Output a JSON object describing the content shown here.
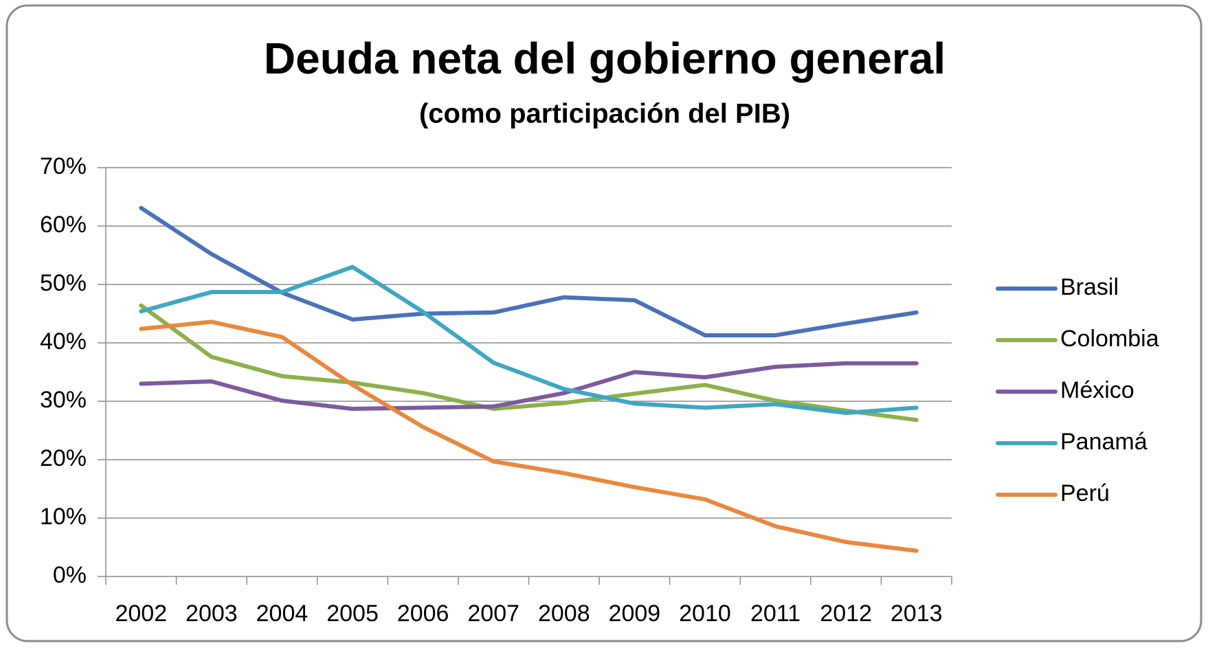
{
  "chart_data": {
    "type": "line",
    "title": "Deuda neta del gobierno general",
    "subtitle": "(como participación del PIB)",
    "categories": [
      "2002",
      "2003",
      "2004",
      "2005",
      "2006",
      "2007",
      "2008",
      "2009",
      "2010",
      "2011",
      "2012",
      "2013"
    ],
    "series": [
      {
        "name": "Brasil",
        "color": "#4a72b8",
        "values": [
          63.1,
          55.2,
          48.6,
          44.0,
          45.0,
          45.2,
          47.8,
          47.3,
          41.3,
          41.3,
          43.3,
          45.2
        ]
      },
      {
        "name": "Colombia",
        "color": "#8db04a",
        "values": [
          46.4,
          37.6,
          34.3,
          33.2,
          31.4,
          28.7,
          29.7,
          31.3,
          32.8,
          30.1,
          28.4,
          26.8
        ]
      },
      {
        "name": "México",
        "color": "#7c5b9e",
        "values": [
          33.0,
          33.4,
          30.1,
          28.7,
          28.9,
          29.1,
          31.4,
          35.0,
          34.1,
          35.9,
          36.5,
          36.5
        ]
      },
      {
        "name": "Panamá",
        "color": "#3fa7c2",
        "values": [
          45.4,
          48.7,
          48.7,
          53.0,
          45.3,
          36.6,
          32.1,
          29.6,
          28.9,
          29.5,
          28.0,
          28.9
        ]
      },
      {
        "name": "Perú",
        "color": "#e9873e",
        "values": [
          42.4,
          43.6,
          41.0,
          32.8,
          25.6,
          19.7,
          17.7,
          15.3,
          13.2,
          8.6,
          5.9,
          4.4
        ]
      }
    ],
    "ylim": [
      0,
      70
    ],
    "yticks": [
      {
        "value": 0,
        "label": "0%"
      },
      {
        "value": 10,
        "label": "10%"
      },
      {
        "value": 20,
        "label": "20%"
      },
      {
        "value": 30,
        "label": "30%"
      },
      {
        "value": 40,
        "label": "40%"
      },
      {
        "value": 50,
        "label": "50%"
      },
      {
        "value": 60,
        "label": "60%"
      },
      {
        "value": 70,
        "label": "70%"
      }
    ],
    "grid": true,
    "legend": "right"
  }
}
